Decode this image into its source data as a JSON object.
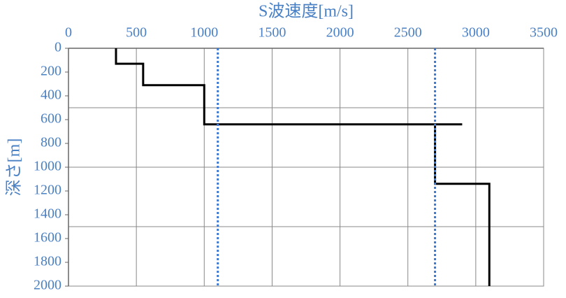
{
  "chart_data": {
    "type": "line",
    "xlabel": "S波速度[m/s]",
    "ylabel": "深さ[m]",
    "xlim": [
      0,
      3500
    ],
    "xticks": [
      0,
      500,
      1000,
      1500,
      2000,
      2500,
      3000,
      3500
    ],
    "ylim": [
      0,
      2000
    ],
    "y_inverted": true,
    "yticks": [
      0,
      200,
      400,
      600,
      800,
      1000,
      1200,
      1400,
      1600,
      1800,
      2000
    ],
    "xgrid": true,
    "ygrid": [
      500,
      1000,
      1500
    ],
    "series": [
      {
        "color": "#000000",
        "style": "solid",
        "x": [
          350,
          350,
          550,
          550,
          1000,
          1000,
          2900,
          2700,
          2700,
          3100,
          3100
        ],
        "values": [
          0,
          130,
          130,
          310,
          310,
          640,
          640,
          640,
          1140,
          1140,
          2000
        ]
      },
      {
        "color": "#3a78d4",
        "style": "dotted",
        "x": [
          1100,
          1100
        ],
        "values": [
          0,
          2000
        ]
      },
      {
        "color": "#3a78d4",
        "style": "dotted",
        "x": [
          2700,
          2700
        ],
        "values": [
          0,
          2000
        ]
      }
    ]
  }
}
